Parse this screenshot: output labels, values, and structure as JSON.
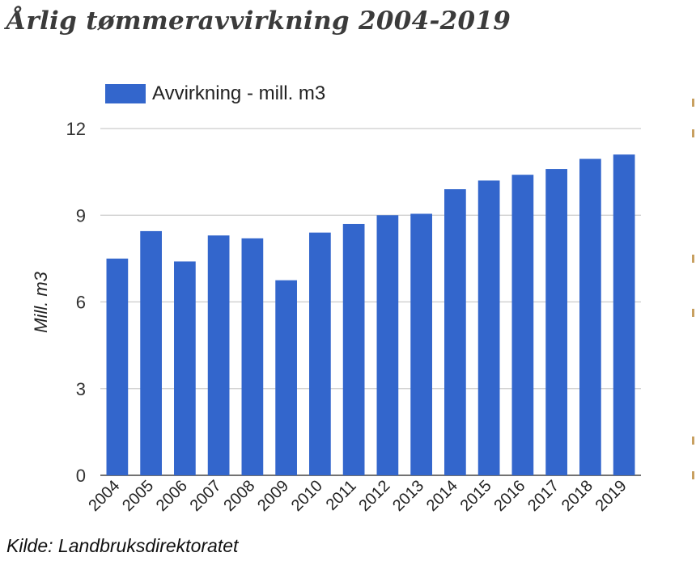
{
  "title": "Årlig tømmeravvirkning 2004-2019",
  "source": "Kilde: Landbruksdirektoratet",
  "chart_data": {
    "type": "bar",
    "categories": [
      "2004",
      "2005",
      "2006",
      "2007",
      "2008",
      "2009",
      "2010",
      "2011",
      "2012",
      "2013",
      "2014",
      "2015",
      "2016",
      "2017",
      "2018",
      "2019"
    ],
    "series": [
      {
        "name": "Avvirkning - mill. m3",
        "values": [
          7.5,
          8.45,
          7.4,
          8.3,
          8.2,
          6.75,
          8.4,
          8.7,
          9.0,
          9.05,
          9.9,
          10.2,
          10.4,
          10.6,
          10.95,
          11.1
        ]
      }
    ],
    "xlabel": "",
    "ylabel": "Mill. m3",
    "ylim": [
      0,
      12
    ],
    "yticks": [
      0,
      3,
      6,
      9,
      12
    ],
    "grid": true,
    "legend_position": "top-left",
    "color": "#3366cc"
  }
}
